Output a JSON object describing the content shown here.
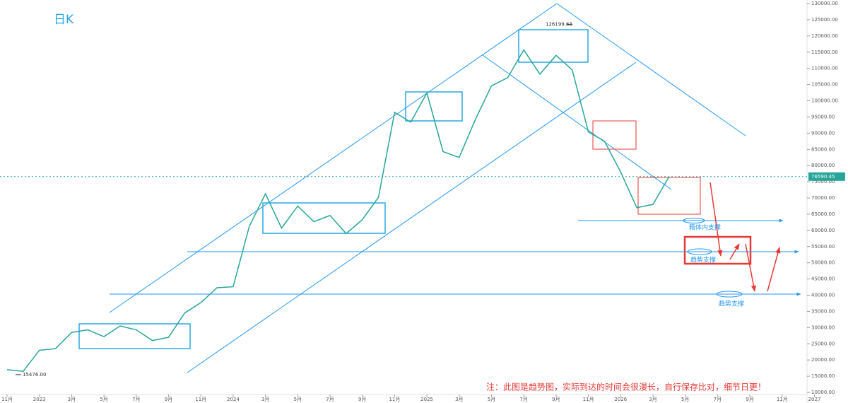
{
  "chart_data": {
    "type": "line",
    "title": "日K",
    "color": "#26a69a",
    "x": [
      "2022-11",
      "2022-12",
      "2023-01",
      "2023-02",
      "2023-03",
      "2023-04",
      "2023-05",
      "2023-06",
      "2023-07",
      "2023-08",
      "2023-09",
      "2023-10",
      "2023-11",
      "2023-12",
      "2024-01",
      "2024-02",
      "2024-03",
      "2024-04",
      "2024-05",
      "2024-06",
      "2024-07",
      "2024-08",
      "2024-09",
      "2024-10",
      "2024-11",
      "2024-12",
      "2025-01",
      "2025-02",
      "2025-03",
      "2025-04",
      "2025-05",
      "2025-06",
      "2025-07",
      "2025-08",
      "2025-09",
      "2025-10",
      "2025-11",
      "2025-12",
      "2026-01",
      "2026-02",
      "2026-03",
      "2026-04"
    ],
    "values": [
      17000,
      16500,
      23000,
      23500,
      28500,
      29300,
      27200,
      30500,
      29300,
      26000,
      27000,
      34500,
      37700,
      42300,
      42600,
      61200,
      71300,
      60700,
      67500,
      62700,
      64600,
      59000,
      63300,
      70200,
      96400,
      93400,
      102400,
      84300,
      82500,
      94200,
      104600,
      107100,
      115700,
      108200,
      114000,
      109500,
      90400,
      87500,
      78000,
      67000,
      68000,
      76590
    ],
    "ylim": [
      10000,
      130000
    ],
    "yticks": [
      {
        "value": 10000,
        "label": "10000.00"
      },
      {
        "value": 15000,
        "label": "15000.00"
      },
      {
        "value": 20000,
        "label": "20000.00"
      },
      {
        "value": 25000,
        "label": "25000.00"
      },
      {
        "value": 30000,
        "label": "30000.00"
      },
      {
        "value": 35000,
        "label": "35000.00"
      },
      {
        "value": 40000,
        "label": "40000.00"
      },
      {
        "value": 45000,
        "label": "45000.00"
      },
      {
        "value": 50000,
        "label": "50000.00"
      },
      {
        "value": 55000,
        "label": "55000.00"
      },
      {
        "value": 60000,
        "label": "60000.00"
      },
      {
        "value": 65000,
        "label": "65000.00"
      },
      {
        "value": 70000,
        "label": "70000.00"
      },
      {
        "value": 75000,
        "label": "75000.00"
      },
      {
        "value": 80000,
        "label": "80000.00"
      },
      {
        "value": 85000,
        "label": "85000.00"
      },
      {
        "value": 90000,
        "label": "90000.00"
      },
      {
        "value": 95000,
        "label": "95000.00"
      },
      {
        "value": 100000,
        "label": "100000.00"
      },
      {
        "value": 105000,
        "label": "105000.00"
      },
      {
        "value": 110000,
        "label": "110000.00"
      },
      {
        "value": 115000,
        "label": "115000.00"
      },
      {
        "value": 120000,
        "label": "120000.00"
      },
      {
        "value": 125000,
        "label": "125000.00"
      },
      {
        "value": 130000,
        "label": "130000.00"
      }
    ],
    "xticks": [
      {
        "value": "2022-11",
        "label": "11月"
      },
      {
        "value": "2023-01",
        "label": "2023"
      },
      {
        "value": "2023-03",
        "label": "3月"
      },
      {
        "value": "2023-05",
        "label": "5月"
      },
      {
        "value": "2023-07",
        "label": "7月"
      },
      {
        "value": "2023-09",
        "label": "9月"
      },
      {
        "value": "2023-11",
        "label": "11月"
      },
      {
        "value": "2024-01",
        "label": "2024"
      },
      {
        "value": "2024-03",
        "label": "3月"
      },
      {
        "value": "2024-05",
        "label": "5月"
      },
      {
        "value": "2024-07",
        "label": "7月"
      },
      {
        "value": "2024-09",
        "label": "9月"
      },
      {
        "value": "2024-11",
        "label": "11月"
      },
      {
        "value": "2025-01",
        "label": "2025"
      },
      {
        "value": "2025-03",
        "label": "3月"
      },
      {
        "value": "2025-05",
        "label": "5月"
      },
      {
        "value": "2025-07",
        "label": "7月"
      },
      {
        "value": "2025-09",
        "label": "9月"
      },
      {
        "value": "2025-11",
        "label": "11月"
      },
      {
        "value": "2026-01",
        "label": "2026"
      },
      {
        "value": "2026-03",
        "label": "3月"
      },
      {
        "value": "2026-05",
        "label": "5月"
      },
      {
        "value": "2026-07",
        "label": "7月"
      },
      {
        "value": "2026-09",
        "label": "9月"
      },
      {
        "value": "2026-11",
        "label": "11月"
      },
      {
        "value": "2027-01",
        "label": "2027"
      }
    ],
    "high": 126199.63,
    "low": {
      "value": 15476,
      "label": "15476.00"
    },
    "last": 76590.45,
    "support_labels": [
      "箱体内支撑",
      "趋势支撑",
      "趋势支撑"
    ],
    "note": "注：此图是趋势图，实际到达的时间会很漫长，自行保存比对，细节日更！"
  }
}
